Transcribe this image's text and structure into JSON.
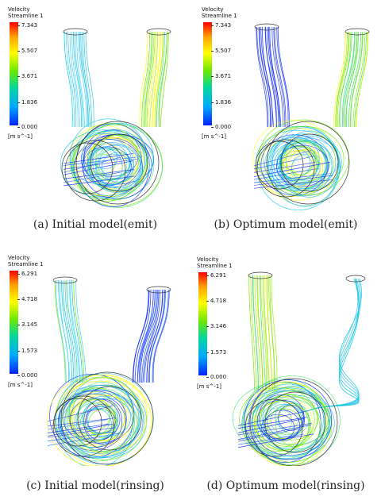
{
  "panels": {
    "a": {
      "caption": "(a) Initial model(emit)",
      "legend": {
        "title1": "Velocity",
        "title2": "Streamline 1",
        "ticks": [
          "7.343",
          "5.507",
          "3.671",
          "1.836",
          "0.000"
        ],
        "unit": "[m s^-1]"
      }
    },
    "b": {
      "caption": "(b) Optimum model(emit)",
      "legend": {
        "title1": "Velocity",
        "title2": "Streamline 1",
        "ticks": [
          "7.343",
          "5.507",
          "3.671",
          "1.836",
          "0.000"
        ],
        "unit": "[m s^-1]"
      }
    },
    "c": {
      "caption": "(c) Initial model(rinsing)",
      "legend": {
        "title1": "Velocity",
        "title2": "Streamline 1",
        "ticks": [
          "6.291",
          "4.718",
          "3.145",
          "1.573",
          "0.000"
        ],
        "unit": "[m s^-1]"
      }
    },
    "d": {
      "caption": "(d) Optimum model(rinsing)",
      "legend": {
        "title1": "Velocity",
        "title2": "Streamline 1",
        "ticks": [
          "6.291",
          "4.718",
          "3.146",
          "1.573",
          "0.000"
        ],
        "unit": "[m s^-1]"
      }
    }
  },
  "colors": {
    "low": "#0022ff",
    "mid_low": "#00c8e0",
    "mid": "#6ee800",
    "mid_high": "#ffff00",
    "high": "#ff0000",
    "outline": "#333333"
  }
}
